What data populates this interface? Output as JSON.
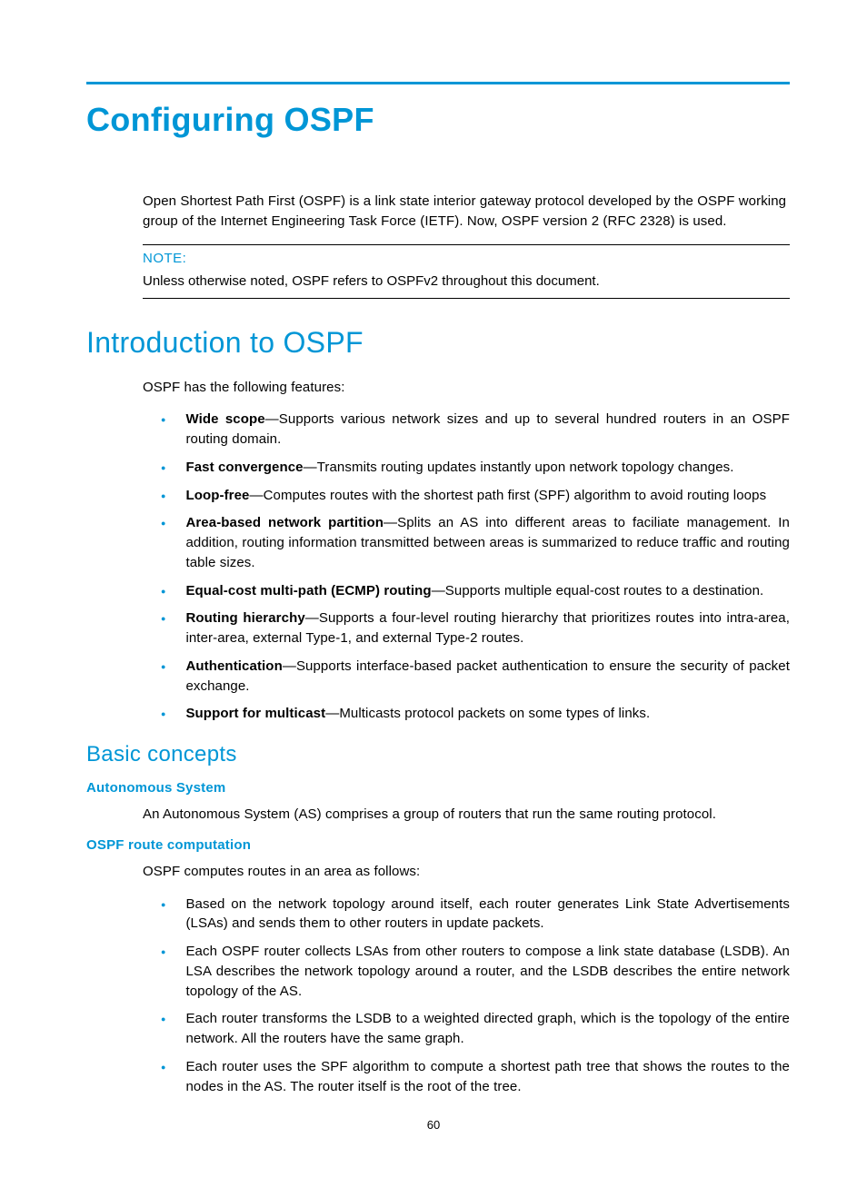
{
  "colors": {
    "accent": "#0096d6",
    "text": "#000000",
    "background": "#ffffff"
  },
  "page": {
    "number": "60"
  },
  "h1": "Configuring OSPF",
  "intro_para": "Open Shortest Path First (OSPF) is a link state interior gateway protocol developed by the OSPF working group of the Internet Engineering Task Force (IETF). Now, OSPF version 2 (RFC 2328) is used.",
  "note": {
    "label": "NOTE:",
    "text": "Unless otherwise noted, OSPF refers to OSPFv2 throughout this document."
  },
  "h2_intro": "Introduction to OSPF",
  "features_lead": "OSPF has the following features:",
  "features": [
    {
      "term": "Wide scope",
      "desc": "—Supports various network sizes and up to several hundred routers in an OSPF routing domain."
    },
    {
      "term": "Fast convergence",
      "desc": "—Transmits routing updates instantly upon network topology changes."
    },
    {
      "term": "Loop-free",
      "desc": "—Computes routes with the shortest path first (SPF) algorithm to avoid routing loops"
    },
    {
      "term": "Area-based network partition",
      "desc": "—Splits an AS into different areas to faciliate management. In addition, routing information transmitted between areas is summarized to reduce traffic and routing table sizes."
    },
    {
      "term": "Equal-cost multi-path (ECMP) routing",
      "desc": "—Supports multiple equal-cost routes to a destination."
    },
    {
      "term": "Routing hierarchy",
      "desc": "—Supports a four-level routing hierarchy that prioritizes routes into intra-area, inter-area, external Type-1, and external Type-2 routes."
    },
    {
      "term": "Authentication",
      "desc": "—Supports interface-based packet authentication to ensure the security of packet exchange."
    },
    {
      "term": "Support for multicast",
      "desc": "—Multicasts protocol packets on some types of links."
    }
  ],
  "h3_basic": "Basic concepts",
  "h4_as": "Autonomous System",
  "as_text": "An Autonomous System (AS) comprises a group of routers that run the same routing protocol.",
  "h4_route": "OSPF route computation",
  "route_lead": "OSPF computes routes in an area as follows:",
  "route_steps": [
    "Based on the network topology around itself, each router generates Link State Advertisements (LSAs) and sends them to other routers in update packets.",
    "Each OSPF router collects LSAs from other routers to compose a link state database (LSDB). An LSA describes the network topology around a router, and the LSDB describes the entire network topology of the AS.",
    "Each router transforms the LSDB to a weighted directed graph, which is the topology of the entire network. All the routers have the same graph.",
    "Each router uses the SPF algorithm to compute a shortest path tree that shows the routes to the nodes in the AS. The router itself is the root of the tree."
  ]
}
